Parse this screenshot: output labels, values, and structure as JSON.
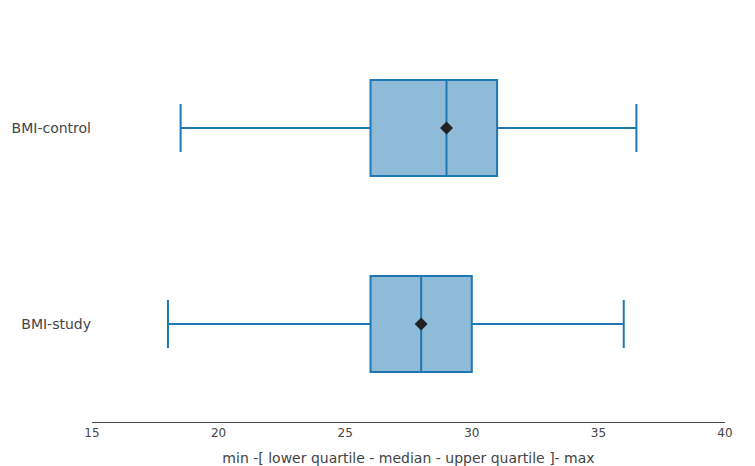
{
  "chart_data": {
    "type": "box",
    "orientation": "horizontal",
    "categories": [
      "BMI-control",
      "BMI-study"
    ],
    "min": [
      18.5,
      18.0
    ],
    "q1": [
      26.0,
      26.0
    ],
    "median": [
      29.0,
      28.0
    ],
    "mean": [
      29.0,
      28.0
    ],
    "q3": [
      31.0,
      30.0
    ],
    "max": [
      36.5,
      36.0
    ],
    "marker": "diamond",
    "xlabel": "min -[ lower quartile - median - upper quartile ]- max",
    "xlim": [
      15,
      40
    ],
    "xticks": [
      15,
      20,
      25,
      30,
      35,
      40
    ],
    "grid": false
  }
}
